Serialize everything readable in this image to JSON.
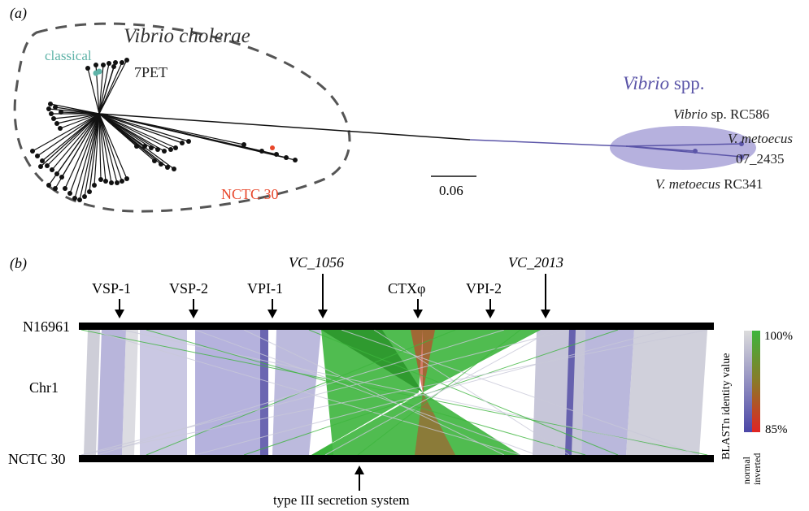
{
  "panel_a": {
    "label": "(a)",
    "vc_title": "Vibrio cholerae",
    "classical": "classical",
    "pet": "7PET",
    "nctc30": "NCTC 30",
    "spp_italic": "Vibrio",
    "spp_rest": " spp.",
    "scale": "0.06",
    "leaf1_italic": "Vibrio",
    "leaf1_rest": " sp. RC586",
    "leaf2_italic": "V. metoecus",
    "leaf2_line2": "07_2435",
    "leaf3_italic": "V. metoecus",
    "leaf3_rest": " RC341",
    "colors": {
      "classical": "#5fb3a8",
      "nctc": "#e8462a",
      "spp": "#5b55a8",
      "spp_fill": "#a9a3d8"
    }
  },
  "panel_b": {
    "label": "(b)",
    "top_genome": "N16961",
    "bottom_genome": "NCTC 30",
    "chromosome": "Chr1",
    "loci": [
      "VSP-1",
      "VSP-2",
      "VPI-1",
      "VC_1056",
      "CTXφ",
      "VPI-2",
      "VC_2013"
    ],
    "bottom_annotation": "type III secretion system",
    "legend": {
      "title": "BLASTn identity value",
      "max": "100%",
      "min": "85%",
      "normal": "normal",
      "inverted": "inverted"
    },
    "colors": {
      "normal": "#9c98d2",
      "inverted_high": "#3db53d",
      "inverted_low": "#e03a2a"
    }
  }
}
